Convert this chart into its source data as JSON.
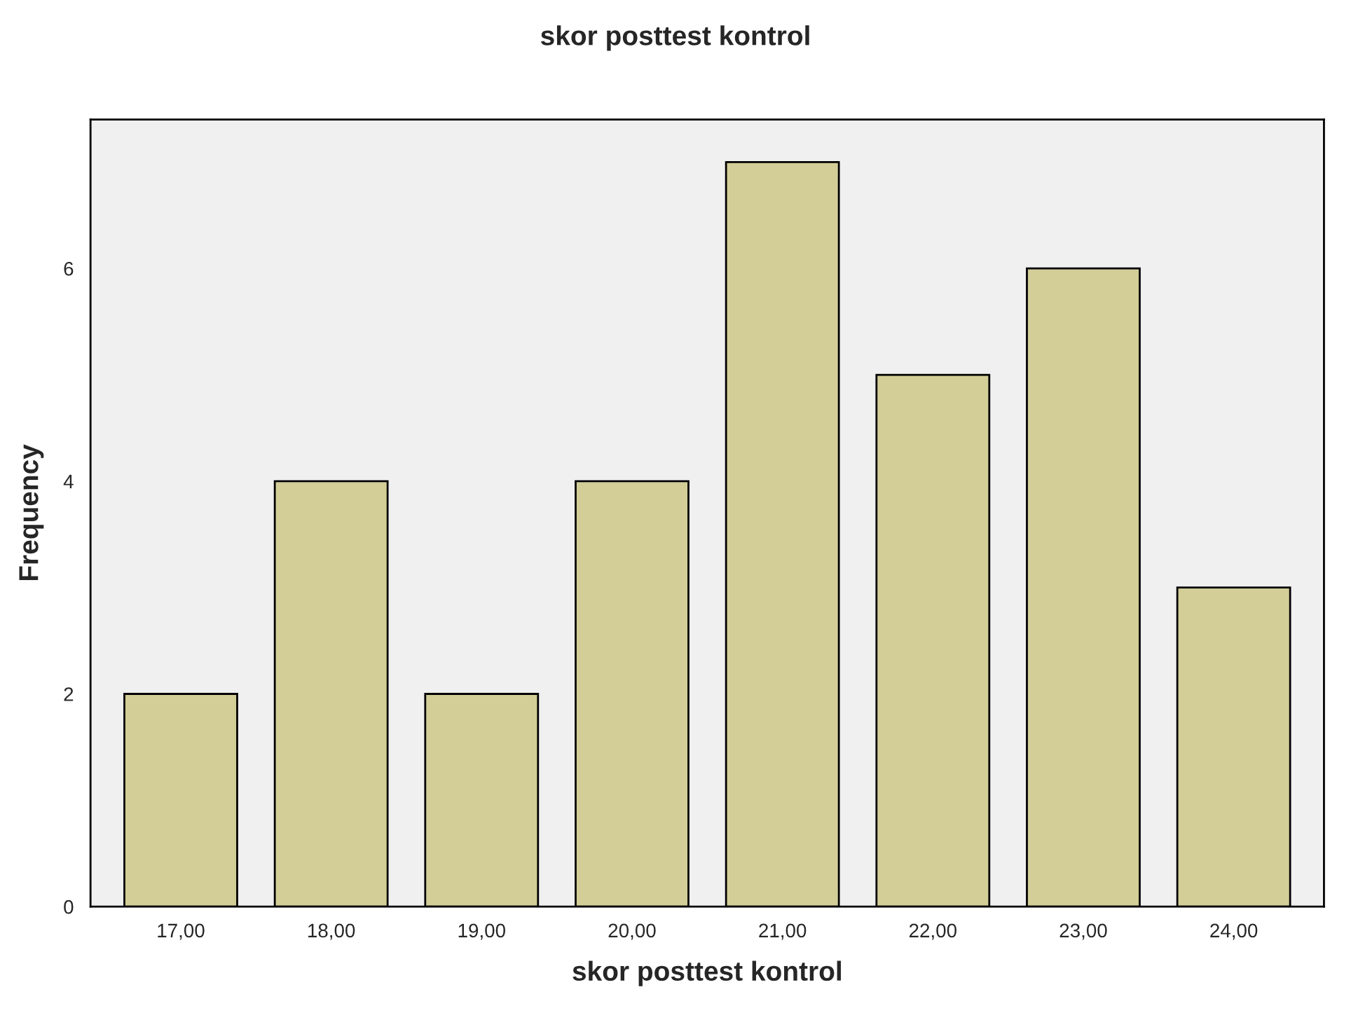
{
  "chart_data": {
    "type": "bar",
    "title": "skor posttest kontrol",
    "xlabel": "skor posttest kontrol",
    "ylabel": "Frequency",
    "categories": [
      "17,00",
      "18,00",
      "19,00",
      "20,00",
      "21,00",
      "22,00",
      "23,00",
      "24,00"
    ],
    "values": [
      2,
      4,
      2,
      4,
      7,
      5,
      6,
      3
    ],
    "color": "#d3ce98",
    "ylim": [
      0,
      7.4
    ],
    "yticks": [
      0,
      2,
      4,
      6
    ],
    "grid": false
  }
}
